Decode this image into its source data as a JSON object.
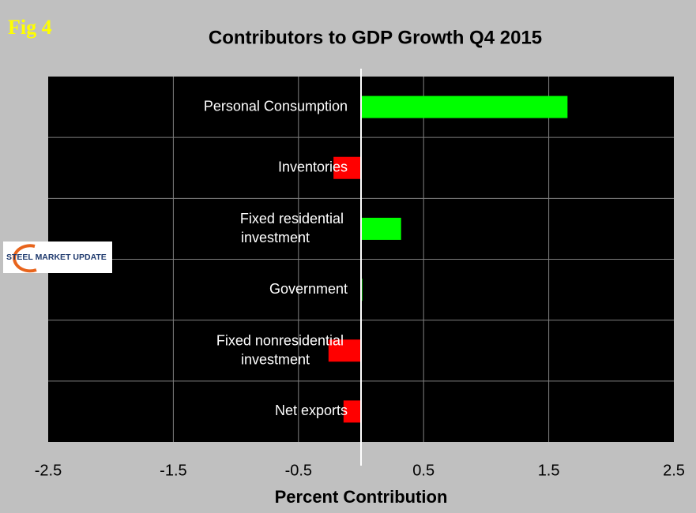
{
  "figure_label": "Fig 4",
  "logo": "STEEL MARKET UPDATE",
  "chart_data": {
    "type": "hbar",
    "title": "Contributors to GDP Growth Q4 2015",
    "x_label": "Percent Contribution",
    "categories": [
      "Personal Consumption",
      "Inventories",
      "Fixed residential investment",
      "Government",
      "Fixed nonresidential investment",
      "Net exports"
    ],
    "values": [
      1.65,
      -0.22,
      0.32,
      0.01,
      -0.26,
      -0.14
    ],
    "colors": [
      "#00ff00",
      "#ff0000",
      "#00ff00",
      "#00ff00",
      "#ff0000",
      "#ff0000"
    ],
    "xlim": [
      -2.5,
      2.5
    ],
    "xticks": [
      -2.5,
      -1.5,
      -0.5,
      0.5,
      1.5,
      2.5
    ],
    "grid": true
  }
}
